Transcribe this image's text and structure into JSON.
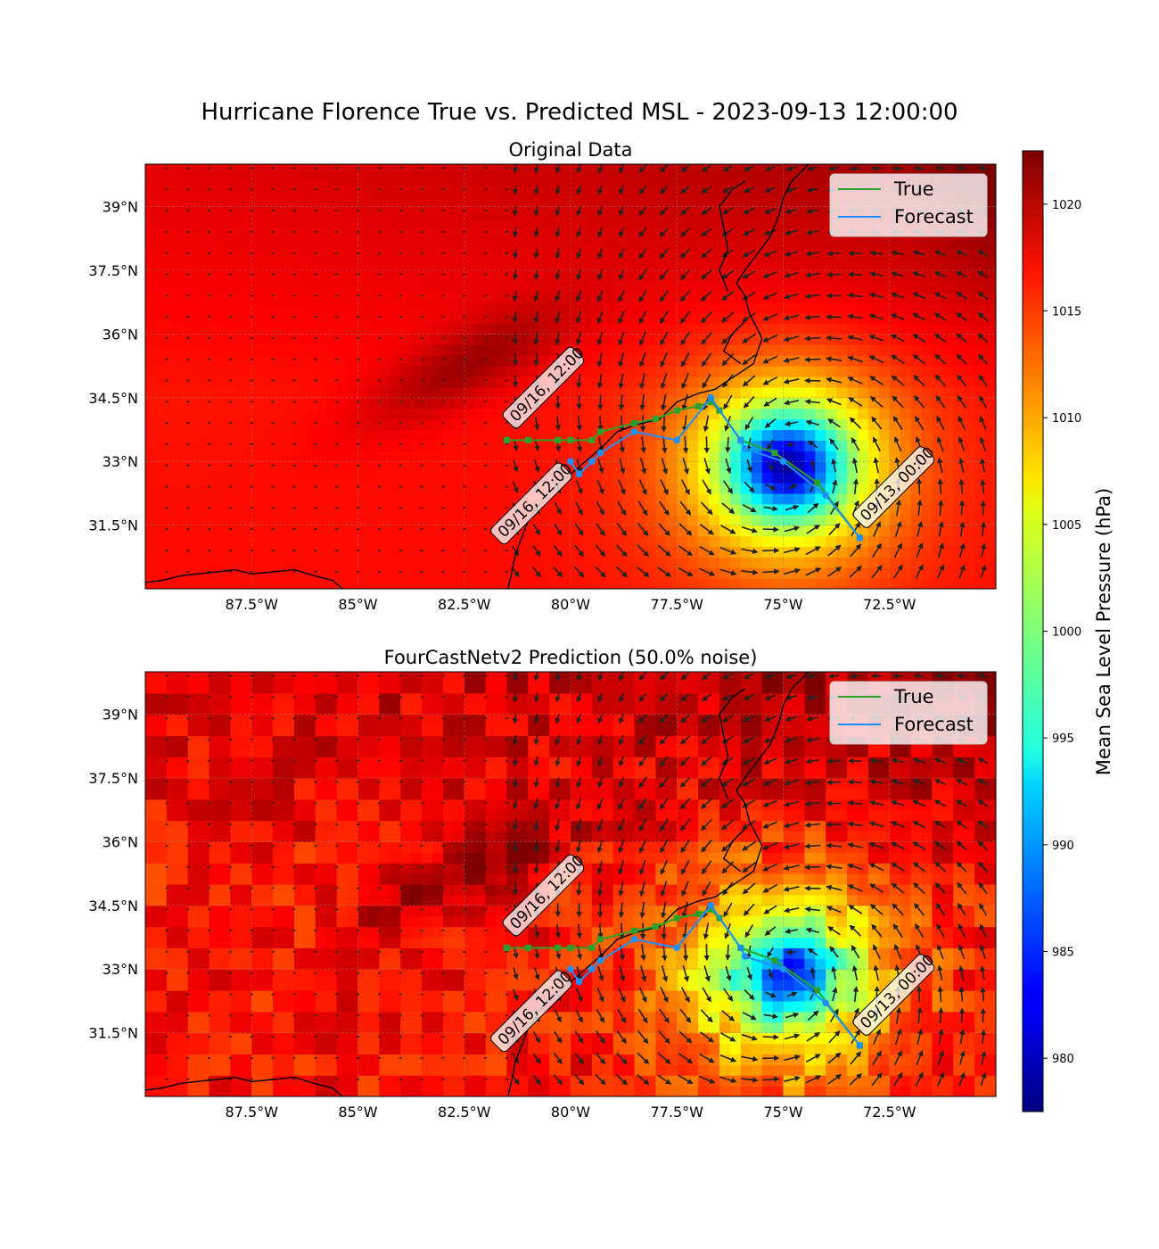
{
  "figure": {
    "title": "Hurricane Florence True vs. Predicted MSL - 2023-09-13 12:00:00"
  },
  "panels": [
    {
      "title": "Original Data",
      "noise": 0
    },
    {
      "title": "FourCastNetv2 Prediction (50.0% noise)",
      "noise": 0.5
    }
  ],
  "axes": {
    "lon_ticks": [
      "87.5°W",
      "85°W",
      "82.5°W",
      "80°W",
      "77.5°W",
      "75°W",
      "72.5°W"
    ],
    "lat_ticks": [
      "39°N",
      "37.5°N",
      "36°N",
      "34.5°N",
      "33°N",
      "31.5°N"
    ]
  },
  "colorbar": {
    "label": "Mean Sea Level Pressure (hPa)",
    "ticks": [
      "1020",
      "1015",
      "1010",
      "1005",
      "1000",
      "995",
      "990",
      "985",
      "980"
    ],
    "range": [
      977.5,
      1022.5
    ],
    "colormap": "jet"
  },
  "legend": {
    "entries": [
      {
        "label": "True",
        "color": "#2ca02c"
      },
      {
        "label": "Forecast",
        "color": "#1e90ff"
      }
    ]
  },
  "annotations": {
    "true_end": "09/16, 12:00",
    "forecast_end": "09/16, 12:00",
    "start": "09/13, 00:00"
  },
  "chart_data": {
    "type": "heatmap",
    "variable": "Mean Sea Level Pressure (hPa)",
    "extent": {
      "lon": [
        -90,
        -70
      ],
      "lat": [
        30,
        40
      ]
    },
    "storm_center": {
      "lon": -74.9,
      "lat": 32.9,
      "min_pressure": 981
    },
    "true_track": [
      {
        "lon": -73.2,
        "lat": 31.2
      },
      {
        "lon": -74.2,
        "lat": 32.5
      },
      {
        "lon": -75.2,
        "lat": 33.2
      },
      {
        "lon": -76.0,
        "lat": 33.5
      },
      {
        "lon": -76.5,
        "lat": 34.2
      },
      {
        "lon": -76.7,
        "lat": 34.4
      },
      {
        "lon": -77.0,
        "lat": 34.3
      },
      {
        "lon": -77.5,
        "lat": 34.2
      },
      {
        "lon": -78.0,
        "lat": 34.0
      },
      {
        "lon": -78.5,
        "lat": 33.9
      },
      {
        "lon": -79.3,
        "lat": 33.7
      },
      {
        "lon": -79.5,
        "lat": 33.5
      },
      {
        "lon": -80.0,
        "lat": 33.5
      },
      {
        "lon": -80.3,
        "lat": 33.5
      },
      {
        "lon": -81.0,
        "lat": 33.5
      },
      {
        "lon": -81.5,
        "lat": 33.5
      }
    ],
    "forecast_track": [
      {
        "lon": -73.2,
        "lat": 31.2
      },
      {
        "lon": -74.0,
        "lat": 32.2
      },
      {
        "lon": -75.0,
        "lat": 33.0
      },
      {
        "lon": -75.9,
        "lat": 33.3
      },
      {
        "lon": -76.0,
        "lat": 33.5
      },
      {
        "lon": -76.7,
        "lat": 34.5
      },
      {
        "lon": -77.5,
        "lat": 33.5
      },
      {
        "lon": -78.5,
        "lat": 33.7
      },
      {
        "lon": -79.3,
        "lat": 33.2
      },
      {
        "lon": -79.5,
        "lat": 33.0
      },
      {
        "lon": -79.8,
        "lat": 32.7
      },
      {
        "lon": -80.0,
        "lat": 33.0
      }
    ]
  }
}
